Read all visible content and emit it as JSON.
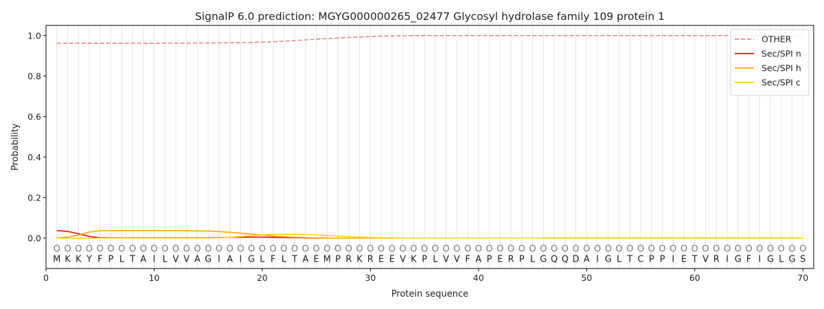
{
  "chart_data": {
    "type": "line",
    "title": "SignalP 6.0 prediction: MGYG000000265_02477 Glycosyl hydrolase family 109 protein 1",
    "xlabel": "Protein sequence",
    "ylabel": "Probability",
    "xlim": [
      0,
      71
    ],
    "ylim": [
      -0.15,
      1.05
    ],
    "xticks": [
      0,
      10,
      20,
      30,
      40,
      50,
      60,
      70
    ],
    "yticks": [
      "0.0",
      "0.2",
      "0.4",
      "0.6",
      "0.8",
      "1.0"
    ],
    "sequence": "MKKYFPLTAILVVAGIAIGLFLTAEMPRKREEVKPLVVFAPERPLGQQDAIGLTCPPIETVRIGFIGLGS",
    "position_marker": "O",
    "legend_position": "top-right",
    "series": [
      {
        "name": "OTHER",
        "color": "#f08080",
        "dash": "dashed",
        "points": [
          [
            1,
            0.962
          ],
          [
            5,
            0.962
          ],
          [
            10,
            0.962
          ],
          [
            15,
            0.963
          ],
          [
            18,
            0.965
          ],
          [
            21,
            0.969
          ],
          [
            23,
            0.975
          ],
          [
            25,
            0.982
          ],
          [
            27,
            0.988
          ],
          [
            29,
            0.993
          ],
          [
            31,
            0.997
          ],
          [
            33,
            0.999
          ],
          [
            35,
            1.0
          ],
          [
            70,
            1.0
          ]
        ]
      },
      {
        "name": "Sec/SPI n",
        "color": "#ff0000",
        "dash": "solid",
        "points": [
          [
            1,
            0.037
          ],
          [
            2,
            0.033
          ],
          [
            3,
            0.022
          ],
          [
            4,
            0.008
          ],
          [
            5,
            0.002
          ],
          [
            6,
            0.001
          ],
          [
            15,
            0.001
          ],
          [
            17,
            0.004
          ],
          [
            19,
            0.005
          ],
          [
            21,
            0.004
          ],
          [
            23,
            0.002
          ],
          [
            25,
            0.0
          ],
          [
            70,
            0.0
          ]
        ]
      },
      {
        "name": "Sec/SPI h",
        "color": "#ffa500",
        "dash": "solid",
        "points": [
          [
            1,
            0.001
          ],
          [
            2,
            0.005
          ],
          [
            3,
            0.015
          ],
          [
            4,
            0.03
          ],
          [
            5,
            0.036
          ],
          [
            6,
            0.037
          ],
          [
            12,
            0.037
          ],
          [
            15,
            0.035
          ],
          [
            17,
            0.029
          ],
          [
            19,
            0.02
          ],
          [
            21,
            0.01
          ],
          [
            23,
            0.004
          ],
          [
            25,
            0.001
          ],
          [
            27,
            0.0
          ],
          [
            70,
            0.0
          ]
        ]
      },
      {
        "name": "Sec/SPI c",
        "color": "#ffd700",
        "dash": "solid",
        "points": [
          [
            1,
            0.0
          ],
          [
            15,
            0.0
          ],
          [
            17,
            0.004
          ],
          [
            19,
            0.012
          ],
          [
            21,
            0.019
          ],
          [
            23,
            0.019
          ],
          [
            25,
            0.016
          ],
          [
            27,
            0.01
          ],
          [
            29,
            0.005
          ],
          [
            31,
            0.002
          ],
          [
            33,
            0.0
          ],
          [
            45,
            0.0
          ],
          [
            47,
            0.001
          ],
          [
            70,
            0.001
          ]
        ]
      }
    ]
  }
}
